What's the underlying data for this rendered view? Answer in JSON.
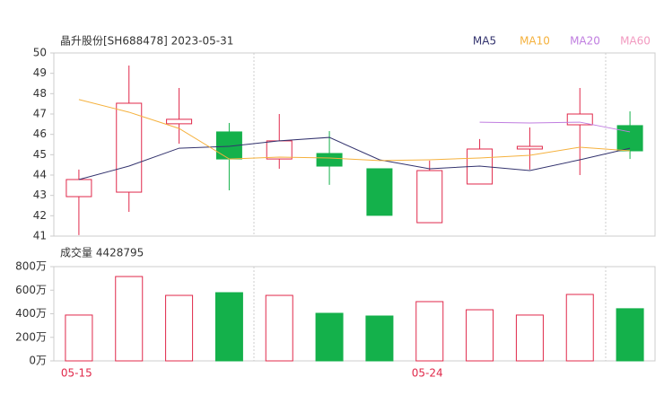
{
  "chart_data": [
    {
      "type": "candlestick",
      "title": "晶升股份[SH688478] 2023-05-31",
      "open": [
        42.94,
        43.16,
        46.52,
        46.12,
        44.79,
        45.06,
        44.31,
        41.66,
        43.56,
        45.28,
        46.47,
        46.43
      ],
      "high": [
        44.27,
        49.38,
        48.28,
        46.56,
        47.0,
        46.16,
        44.31,
        44.71,
        45.77,
        46.34,
        48.28,
        47.13
      ],
      "low": [
        41.05,
        42.19,
        45.54,
        43.25,
        44.31,
        43.52,
        42.02,
        41.66,
        43.56,
        44.27,
        44.0,
        44.79
      ],
      "close": [
        43.78,
        47.53,
        46.74,
        44.79,
        45.68,
        44.44,
        42.02,
        44.22,
        45.28,
        45.41,
        47.0,
        45.19
      ],
      "up_color": "#e0284a",
      "down_color": "#14b14b",
      "series": [
        {
          "name": "MA5",
          "color": "#33336e",
          "values": [
            43.78,
            44.44,
            45.32,
            45.41,
            45.68,
            45.85,
            44.75,
            44.31,
            44.44,
            44.22,
            44.75,
            45.32
          ]
        },
        {
          "name": "MA10",
          "color": "#f5b13d",
          "values": [
            47.71,
            47.09,
            46.29,
            44.79,
            44.88,
            44.84,
            44.71,
            44.75,
            44.84,
            44.97,
            45.37,
            45.19
          ]
        },
        {
          "name": "MA20",
          "color": "#c07ee0",
          "values": [
            null,
            null,
            null,
            null,
            null,
            null,
            null,
            null,
            46.6,
            46.56,
            46.6,
            46.12
          ]
        },
        {
          "name": "MA60",
          "color": "#f29ac0",
          "values": [
            null,
            null,
            null,
            null,
            null,
            null,
            null,
            null,
            null,
            null,
            null,
            null
          ]
        }
      ],
      "ylim": [
        41,
        50
      ],
      "yticks": [
        41,
        42,
        43,
        44,
        45,
        46,
        47,
        48,
        49,
        50
      ]
    },
    {
      "type": "bar",
      "title": "成交量 4428795",
      "categories": [
        "05-15",
        null,
        null,
        null,
        null,
        null,
        null,
        "05-24",
        null,
        null,
        null,
        null
      ],
      "values": [
        389,
        716,
        556,
        579,
        556,
        404,
        381,
        503,
        434,
        389,
        564,
        442.88
      ],
      "ylim": [
        0,
        800
      ],
      "yticks": [
        {
          "value": 0,
          "label": "0万"
        },
        {
          "value": 200,
          "label": "200万"
        },
        {
          "value": 400,
          "label": "400万"
        },
        {
          "value": 600,
          "label": "600万"
        },
        {
          "value": 800,
          "label": "800万"
        }
      ]
    }
  ]
}
